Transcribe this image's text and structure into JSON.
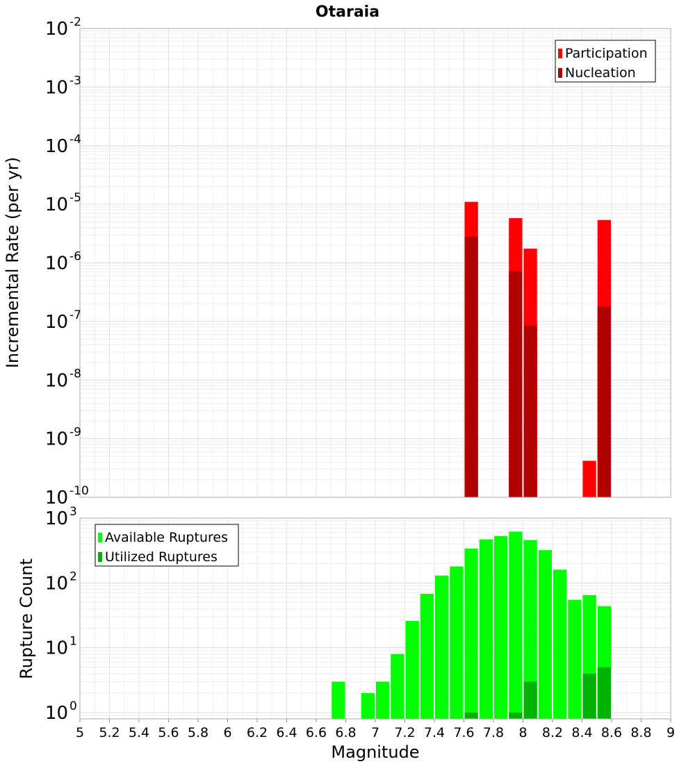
{
  "chart_data": [
    {
      "type": "bar",
      "title": "Otaraia",
      "xlabel": "",
      "ylabel": "Incremental Rate (per yr)",
      "y_scale": "log",
      "ylim": [
        1e-10,
        0.01
      ],
      "xlim": [
        5,
        9
      ],
      "grid": true,
      "legend_position": "top-right",
      "bar_width": 0.1,
      "y_tick_exponents": [
        "-10",
        "-9",
        "-8",
        "-7",
        "-6",
        "-5",
        "-4",
        "-3",
        "-2"
      ],
      "series": [
        {
          "name": "Participation",
          "color": "#ff0000",
          "points": [
            {
              "x": 7.65,
              "y": 1.1e-05
            },
            {
              "x": 7.95,
              "y": 5.8e-06
            },
            {
              "x": 8.05,
              "y": 1.75e-06
            },
            {
              "x": 8.45,
              "y": 4.2e-10
            },
            {
              "x": 8.55,
              "y": 5.4e-06
            }
          ]
        },
        {
          "name": "Nucleation",
          "color": "#b20000",
          "points": [
            {
              "x": 7.65,
              "y": 2.8e-06
            },
            {
              "x": 7.95,
              "y": 7.2e-07
            },
            {
              "x": 8.05,
              "y": 8.5e-08
            },
            {
              "x": 8.55,
              "y": 1.8e-07
            }
          ]
        }
      ]
    },
    {
      "type": "bar",
      "title": "",
      "xlabel": "Magnitude",
      "ylabel": "Rupture Count",
      "y_scale": "log",
      "ylim": [
        0.8,
        1000
      ],
      "xlim": [
        5,
        9
      ],
      "grid": true,
      "legend_position": "top-left",
      "bar_width": 0.1,
      "y_tick_exponents": [
        "0",
        "1",
        "2",
        "3"
      ],
      "x_ticks": [
        "5",
        "5.2",
        "5.4",
        "5.6",
        "5.8",
        "6",
        "6.2",
        "6.4",
        "6.6",
        "6.8",
        "7",
        "7.2",
        "7.4",
        "7.6",
        "7.8",
        "8",
        "8.2",
        "8.4",
        "8.6",
        "8.8",
        "9"
      ],
      "series": [
        {
          "name": "Available Ruptures",
          "color": "#00ff00",
          "points": [
            {
              "x": 6.75,
              "y": 3
            },
            {
              "x": 6.95,
              "y": 2
            },
            {
              "x": 7.05,
              "y": 3
            },
            {
              "x": 7.15,
              "y": 8
            },
            {
              "x": 7.25,
              "y": 26
            },
            {
              "x": 7.35,
              "y": 68
            },
            {
              "x": 7.45,
              "y": 130
            },
            {
              "x": 7.55,
              "y": 180
            },
            {
              "x": 7.65,
              "y": 340
            },
            {
              "x": 7.75,
              "y": 470
            },
            {
              "x": 7.85,
              "y": 530
            },
            {
              "x": 7.95,
              "y": 620
            },
            {
              "x": 8.05,
              "y": 460
            },
            {
              "x": 8.15,
              "y": 320
            },
            {
              "x": 8.25,
              "y": 160
            },
            {
              "x": 8.35,
              "y": 55
            },
            {
              "x": 8.45,
              "y": 65
            },
            {
              "x": 8.55,
              "y": 44
            }
          ]
        },
        {
          "name": "Utilized Ruptures",
          "color": "#00b200",
          "points": [
            {
              "x": 7.65,
              "y": 1
            },
            {
              "x": 7.95,
              "y": 1
            },
            {
              "x": 8.05,
              "y": 3
            },
            {
              "x": 8.45,
              "y": 4
            },
            {
              "x": 8.55,
              "y": 5
            }
          ]
        }
      ]
    }
  ]
}
